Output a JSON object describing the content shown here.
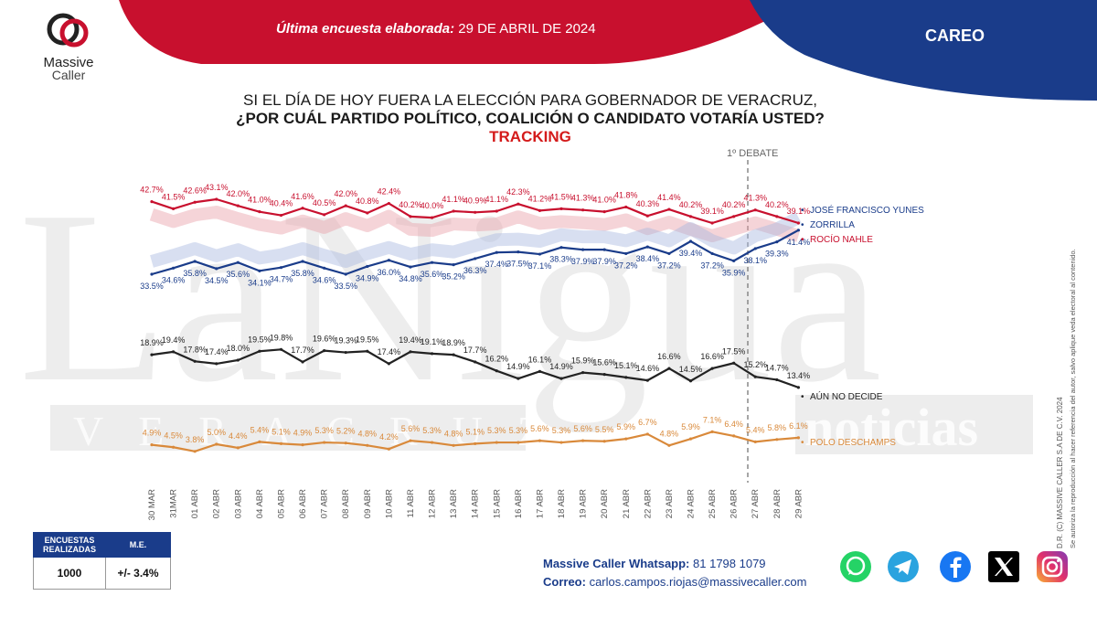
{
  "header": {
    "survey_label": "Última encuesta elaborada:",
    "survey_date": "29 DE ABRIL DE 2024",
    "section": "CAREO",
    "colors": {
      "red": "#c8102e",
      "navy": "#1a3c8a"
    }
  },
  "logo": {
    "line1": "Massive",
    "line2": "Caller",
    "icon": "chat-bubbles-icon"
  },
  "question": {
    "line1": "SI EL DÍA DE HOY FUERA LA ELECCIÓN PARA GOBERNADOR DE VERACRUZ,",
    "line2": "¿POR CUÁL PARTIDO POLÍTICO, COALICIÓN O CANDIDATO  VOTARÍA USTED?",
    "line3": "TRACKING"
  },
  "debate_label": "1º DEBATE",
  "watermark": {
    "text1": "LaNigua",
    "text2": "VERACRUZ",
    "text3": "noticias"
  },
  "chart_data": {
    "type": "line",
    "categories": [
      "30 MAR",
      "31MAR",
      "01 ABR",
      "02 ABR",
      "03 ABR",
      "04 ABR",
      "05 ABR",
      "06 ABR",
      "07 ABR",
      "08 ABR",
      "09 ABR",
      "10 ABR",
      "11 ABR",
      "12 ABR",
      "13 ABR",
      "14 ABR",
      "15 ABR",
      "16 ABR",
      "17 ABR",
      "18 ABR",
      "19 ABR",
      "20 ABR",
      "21 ABR",
      "22 ABR",
      "23 ABR",
      "24 ABR",
      "25 ABR",
      "26 ABR",
      "27 ABR",
      "28 ABR",
      "29 ABR"
    ],
    "debate_index": 26.5,
    "series": [
      {
        "name": "JOSÉ FRANCISCO YUNES",
        "color": "#1a3c8a",
        "values": [
          33.5,
          34.6,
          35.8,
          34.5,
          35.6,
          34.1,
          34.7,
          35.8,
          34.6,
          33.5,
          34.9,
          36.0,
          34.8,
          35.6,
          35.2,
          36.3,
          37.4,
          37.5,
          37.1,
          38.3,
          37.9,
          37.9,
          37.2,
          38.4,
          37.2,
          39.4,
          37.2,
          35.9,
          38.1,
          39.3,
          41.4
        ],
        "labels": [
          "33.5%",
          "34.6%",
          "35.8%",
          "34.5%",
          "35.6%",
          "34.1%",
          "34.7%",
          "35.8%",
          "34.6%",
          "33.5%",
          "34.9%",
          "36.0%",
          "34.8%",
          "35.6%",
          "35.2%",
          "36.3%",
          "37.4%",
          "37.5%",
          "37.1%",
          "38.3%",
          "37.9%",
          "37.9%",
          "37.2%",
          "38.4%",
          "37.2%",
          "39.4%",
          "37.2%",
          "35.9%",
          "38.1%",
          "39.3%",
          "41.4%"
        ]
      },
      {
        "name": "ROCÍO NAHLE",
        "color": "#c8102e",
        "values": [
          42.7,
          41.5,
          42.6,
          43.1,
          42.0,
          41.0,
          40.4,
          41.6,
          40.5,
          42.0,
          40.8,
          42.4,
          40.2,
          40.0,
          41.1,
          40.9,
          41.1,
          42.3,
          41.2,
          41.5,
          41.3,
          41.0,
          41.8,
          40.3,
          41.4,
          40.2,
          39.1,
          40.2,
          41.3,
          40.2,
          39.1
        ],
        "labels": [
          "42.7%",
          "41.5%",
          "42.6%",
          "43.1%",
          "42.0%",
          "41.0%",
          "40.4%",
          "41.6%",
          "40.5%",
          "42.0%",
          "40.8%",
          "42.4%",
          "40.2%",
          "40.0%",
          "41.1%",
          "40.9%",
          "41.1%",
          "42.3%",
          "41.2%",
          "41.5%",
          "41.3%",
          "41.0%",
          "41.8%",
          "40.3%",
          "41.4%",
          "40.2%",
          "39.1%",
          "40.2%",
          "41.3%",
          "40.2%",
          "39.1%"
        ]
      },
      {
        "name": "AÚN NO DECIDE",
        "color": "#222222",
        "values": [
          18.9,
          19.4,
          17.8,
          17.4,
          18.0,
          19.5,
          19.8,
          17.7,
          19.6,
          19.3,
          19.5,
          17.4,
          19.4,
          19.1,
          18.9,
          17.7,
          16.2,
          14.9,
          16.1,
          14.9,
          15.9,
          15.6,
          15.1,
          14.6,
          16.6,
          14.5,
          16.6,
          17.5,
          15.2,
          14.7,
          13.4
        ],
        "labels": [
          "18.9%",
          "19.4%",
          "17.8%",
          "17.4%",
          "18.0%",
          "19.5%",
          "19.8%",
          "17.7%",
          "19.6%",
          "19.3%",
          "19.5%",
          "17.4%",
          "19.4%",
          "19.1%",
          "18.9%",
          "17.7%",
          "16.2%",
          "14.9%",
          "16.1%",
          "14.9%",
          "15.9%",
          "15.6%",
          "15.1%",
          "14.6%",
          "16.6%",
          "14.5%",
          "16.6%",
          "17.5%",
          "15.2%",
          "14.7%",
          "13.4%"
        ]
      },
      {
        "name": "POLO DESCHAMPS",
        "color": "#d9893a",
        "values": [
          4.9,
          4.5,
          3.8,
          5.0,
          4.4,
          5.4,
          5.1,
          4.9,
          5.3,
          5.2,
          4.8,
          4.2,
          5.6,
          5.3,
          4.8,
          5.1,
          5.3,
          5.3,
          5.6,
          5.3,
          5.6,
          5.5,
          5.9,
          6.7,
          4.8,
          5.9,
          7.1,
          6.4,
          5.4,
          5.8,
          6.1
        ],
        "labels": [
          "4.9%",
          "4.5%",
          "3.8%",
          "5.0%",
          "4.4%",
          "5.4%",
          "5.1%",
          "4.9%",
          "5.3%",
          "5.2%",
          "4.8%",
          "4.2%",
          "5.6%",
          "5.3%",
          "4.8%",
          "5.1%",
          "5.3%",
          "5.3%",
          "5.6%",
          "5.3%",
          "5.6%",
          "5.5%",
          "5.9%",
          "6.7%",
          "4.8%",
          "5.9%",
          "7.1%",
          "6.4%",
          "5.4%",
          "5.8%",
          "6.1%"
        ]
      }
    ],
    "legend_extra": "ZORRILLA",
    "xlabel": "",
    "ylabel": ""
  },
  "stats": {
    "col1_header": "ENCUESTAS REALIZADAS",
    "col2_header": "M.E.",
    "col1_value": "1000",
    "col2_value": "+/- 3.4%"
  },
  "contact": {
    "whatsapp_label": "Massive Caller Whatsapp:",
    "whatsapp_number": "81 1798 1079",
    "email_label": "Correo:",
    "email": "carlos.campos.riojas@massivecaller.com"
  },
  "social": [
    "whatsapp-icon",
    "telegram-icon",
    "facebook-icon",
    "x-icon",
    "instagram-icon"
  ],
  "vertical_note": {
    "line1": "D.R. (C) MASSIVE CALLER S.A DE C.V. 2024",
    "line2": "Se autoriza la reproducción al hacer referencia del autor, salvo aplique veda electoral al contenido."
  }
}
